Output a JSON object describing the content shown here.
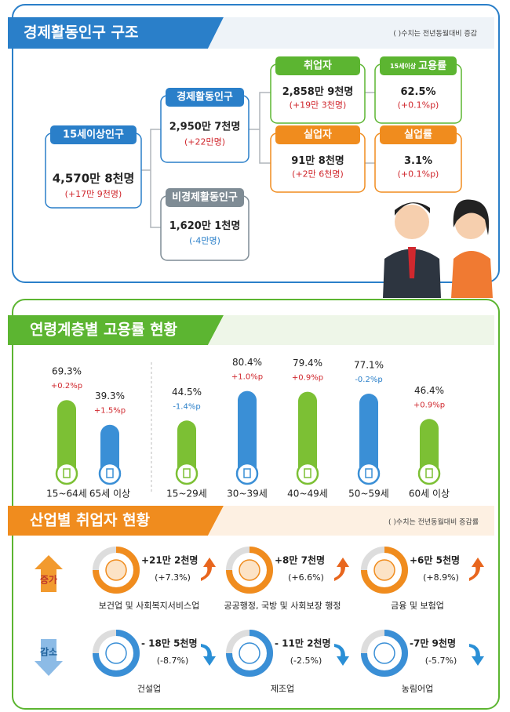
{
  "section1": {
    "title": "경제활동인구 구조",
    "note": "( )수치는 전년동월대비 증감",
    "nodes": [
      {
        "label": "15세이상인구",
        "value": "4,570만 8천명",
        "change": "(+17만 9천명)",
        "color": "#2a7fc9",
        "change_color": "#d0282e"
      },
      {
        "label": "경제활동인구",
        "value": "2,950만 7천명",
        "change": "(+22만명)",
        "color": "#2a7fc9",
        "change_color": "#d0282e"
      },
      {
        "label": "비경제활동인구",
        "value": "1,620만 1천명",
        "change": "(-4만명)",
        "color": "#7f8c95",
        "change_color": "#2a7fc9"
      },
      {
        "label": "취업자",
        "value": "2,858만 9천명",
        "change": "(+19만 3천명)",
        "color": "#5cb531",
        "change_color": "#d0282e"
      },
      {
        "label": "실업자",
        "value": "91만 8천명",
        "change": "(+2만 6천명)",
        "color": "#f08c1e",
        "change_color": "#d0282e"
      },
      {
        "prefix": "15세이상",
        "label": "고용률",
        "value": "62.5%",
        "change": "(+0.1%p)",
        "color": "#5cb531",
        "change_color": "#d0282e"
      },
      {
        "label": "실업률",
        "value": "3.1%",
        "change": "(+0.1%p)",
        "color": "#f08c1e",
        "change_color": "#d0282e"
      }
    ]
  },
  "section2": {
    "title": "연령계층별 고용률 현황",
    "bars": [
      {
        "category": "15~64세",
        "value": 69.3,
        "value_label": "69.3%",
        "change": "+0.2%p",
        "color": "#7cc034",
        "change_color": "#d0282e"
      },
      {
        "category": "65세 이상",
        "value": 39.3,
        "value_label": "39.3%",
        "change": "+1.5%p",
        "color": "#3a8fd6",
        "change_color": "#d0282e"
      },
      {
        "category": "15~29세",
        "value": 44.5,
        "value_label": "44.5%",
        "change": "-1.4%p",
        "color": "#7cc034",
        "change_color": "#2a7fc9"
      },
      {
        "category": "30~39세",
        "value": 80.4,
        "value_label": "80.4%",
        "change": "+1.0%p",
        "color": "#3a8fd6",
        "change_color": "#d0282e"
      },
      {
        "category": "40~49세",
        "value": 79.4,
        "value_label": "79.4%",
        "change": "+0.9%p",
        "color": "#7cc034",
        "change_color": "#d0282e"
      },
      {
        "category": "50~59세",
        "value": 77.1,
        "value_label": "77.1%",
        "change": "-0.2%p",
        "color": "#3a8fd6",
        "change_color": "#2a7fc9"
      },
      {
        "category": "60세 이상",
        "value": 46.4,
        "value_label": "46.4%",
        "change": "+0.9%p",
        "color": "#7cc034",
        "change_color": "#d0282e"
      }
    ]
  },
  "section3": {
    "title": "산업별 취업자 현황",
    "note": "( )수치는 전년동월대비 증감률",
    "increase_label": "증가",
    "decrease_label": "감소",
    "increase": [
      {
        "change": "+21만 2천명",
        "rate": "(+7.3%)",
        "industry": "보건업 및 사회복지서비스업"
      },
      {
        "change": "+8만 7천명",
        "rate": "(+6.6%)",
        "industry": "공공행정, 국방 및 사회보장 행정"
      },
      {
        "change": "+6만 5천명",
        "rate": "(+8.9%)",
        "industry": "금융 및 보험업"
      }
    ],
    "decrease": [
      {
        "change": "- 18만 5천명",
        "rate": "(-8.7%)",
        "industry": "건설업"
      },
      {
        "change": "- 11만 2천명",
        "rate": "(-2.5%)",
        "industry": "제조업"
      },
      {
        "change": "-7만 9천명",
        "rate": "(-5.7%)",
        "industry": "농림어업"
      }
    ]
  }
}
